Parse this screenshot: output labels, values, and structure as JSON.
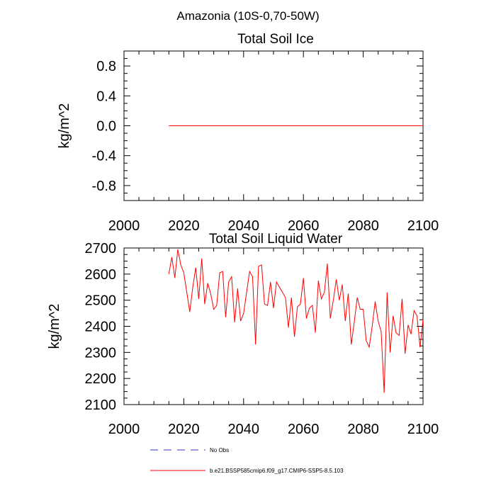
{
  "page_title": "Amazonia (10S-0,70-50W)",
  "chart_data": [
    {
      "type": "line",
      "title": "Total Soil Ice",
      "xlabel": "",
      "ylabel": "kg/m^2",
      "xlim": [
        2000,
        2100
      ],
      "ylim": [
        -1.0,
        1.0
      ],
      "xticks": [
        2000,
        2020,
        2040,
        2060,
        2080,
        2100
      ],
      "yticks": [
        -0.8,
        -0.4,
        0.0,
        0.4,
        0.8
      ],
      "ytick_labels": [
        "-0.8",
        "-0.4",
        "0.0",
        "0.4",
        "0.8"
      ],
      "series": [
        {
          "name": "b.e21.BSSP585cmip6.f09_g17.CMIP6-SSP5-8.5.103",
          "color": "#ff0000",
          "x": [
            2015,
            2100
          ],
          "values": [
            0.0,
            0.0
          ]
        }
      ]
    },
    {
      "type": "line",
      "title": "Total Soil Liquid Water",
      "xlabel": "",
      "ylabel": "kg/m^2",
      "xlim": [
        2000,
        2100
      ],
      "ylim": [
        2100,
        2700
      ],
      "xticks": [
        2000,
        2020,
        2040,
        2060,
        2080,
        2100
      ],
      "yticks": [
        2100,
        2200,
        2300,
        2400,
        2500,
        2600,
        2700
      ],
      "ytick_labels": [
        "2100",
        "2200",
        "2300",
        "2400",
        "2500",
        "2600",
        "2700"
      ],
      "series": [
        {
          "name": "b.e21.BSSP585cmip6.f09_g17.CMIP6-SSP5-8.5.103",
          "color": "#ff0000",
          "x": [
            2015,
            2016,
            2017,
            2018,
            2019,
            2020,
            2021,
            2022,
            2023,
            2024,
            2025,
            2026,
            2027,
            2028,
            2029,
            2030,
            2031,
            2032,
            2033,
            2034,
            2035,
            2036,
            2037,
            2038,
            2039,
            2040,
            2041,
            2042,
            2043,
            2044,
            2045,
            2046,
            2047,
            2048,
            2049,
            2050,
            2051,
            2052,
            2053,
            2054,
            2055,
            2056,
            2057,
            2058,
            2059,
            2060,
            2061,
            2062,
            2063,
            2064,
            2065,
            2066,
            2067,
            2068,
            2069,
            2070,
            2071,
            2072,
            2073,
            2074,
            2075,
            2076,
            2077,
            2078,
            2079,
            2080,
            2081,
            2082,
            2083,
            2084,
            2085,
            2086,
            2087,
            2088,
            2089,
            2090,
            2091,
            2092,
            2093,
            2094,
            2095,
            2096,
            2097,
            2098,
            2099,
            2100
          ],
          "values": [
            2600,
            2665,
            2585,
            2695,
            2635,
            2605,
            2530,
            2455,
            2550,
            2625,
            2505,
            2660,
            2485,
            2565,
            2525,
            2465,
            2480,
            2605,
            2610,
            2435,
            2570,
            2590,
            2415,
            2545,
            2420,
            2450,
            2530,
            2610,
            2590,
            2330,
            2630,
            2635,
            2485,
            2480,
            2570,
            2470,
            2570,
            2550,
            2530,
            2510,
            2395,
            2510,
            2360,
            2475,
            2485,
            2585,
            2430,
            2470,
            2480,
            2375,
            2575,
            2505,
            2530,
            2640,
            2430,
            2500,
            2580,
            2500,
            2560,
            2420,
            2525,
            2330,
            2415,
            2510,
            2465,
            2465,
            2345,
            2320,
            2400,
            2495,
            2420,
            2380,
            2145,
            2530,
            2300,
            2440,
            2375,
            2365,
            2505,
            2295,
            2405,
            2370,
            2460,
            2440,
            2320,
            2425
          ]
        }
      ]
    }
  ],
  "legend": [
    {
      "label": "No Obs",
      "color": "#3030cc",
      "style": "dashed"
    },
    {
      "label": "b.e21.BSSP585cmip6.f09_g17.CMIP6-SSP5-8.5.103",
      "color": "#ff0000",
      "style": "solid"
    }
  ]
}
